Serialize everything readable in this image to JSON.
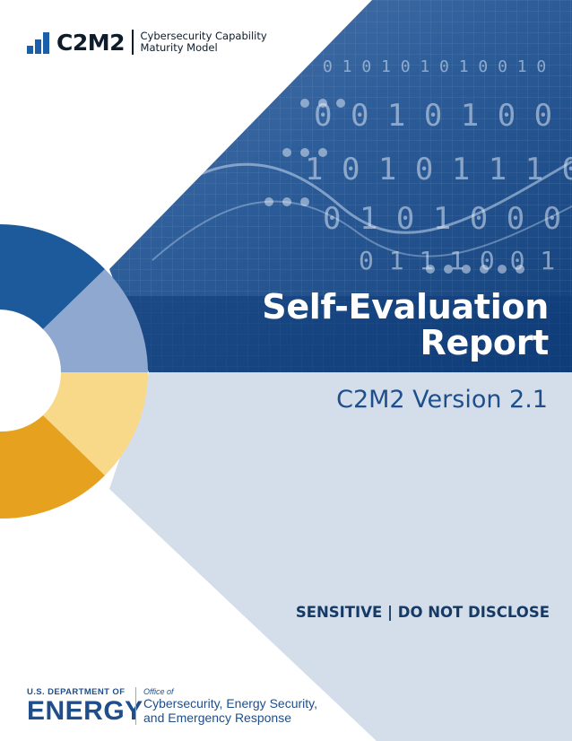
{
  "logo": {
    "acronym": "C2M2",
    "subtitle_line1": "Cybersecurity Capability",
    "subtitle_line2": "Maturity Model",
    "bar_color": "#1b5fa8"
  },
  "cover": {
    "title_line1": "Self-Evaluation",
    "title_line2": "Report",
    "version": "C2M2 Version 2.1",
    "classification": "SENSITIVE | DO NOT DISCLOSE"
  },
  "footer": {
    "department": "U.S. DEPARTMENT OF",
    "agency": "ENERGY",
    "office_prefix": "Office of",
    "office_line1": "Cybersecurity, Energy Security,",
    "office_line2": "and Emergency Response"
  },
  "colors": {
    "navy": "#1b4e8a",
    "light_blue_panel": "#d4deeb",
    "ring_dark_blue": "#1d5a9c",
    "ring_light_blue": "#8fa8cf",
    "ring_light_yellow": "#f8d98a",
    "ring_gold": "#e6a21e"
  },
  "background_image": {
    "description_icon": "binary-data-pattern"
  }
}
